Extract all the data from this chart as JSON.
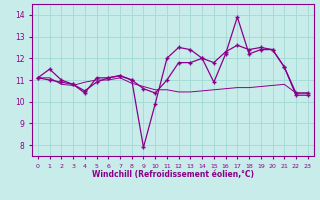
{
  "xlabel": "Windchill (Refroidissement éolien,°C)",
  "bg_color": "#c8ecea",
  "line_color": "#8b008b",
  "grid_color": "#a0d8d4",
  "xlim": [
    -0.5,
    23.5
  ],
  "ylim": [
    7.5,
    14.5
  ],
  "yticks": [
    8,
    9,
    10,
    11,
    12,
    13,
    14
  ],
  "xticks": [
    0,
    1,
    2,
    3,
    4,
    5,
    6,
    7,
    8,
    9,
    10,
    11,
    12,
    13,
    14,
    15,
    16,
    17,
    18,
    19,
    20,
    21,
    22,
    23
  ],
  "line1_x": [
    0,
    1,
    2,
    3,
    4,
    5,
    6,
    7,
    8,
    9,
    10,
    11,
    12,
    13,
    14,
    15,
    16,
    17,
    18,
    19,
    20,
    21,
    22,
    23
  ],
  "line1_y": [
    11.1,
    11.5,
    11.0,
    10.8,
    10.4,
    11.1,
    11.1,
    11.2,
    11.0,
    7.9,
    9.9,
    12.0,
    12.5,
    12.4,
    12.0,
    10.9,
    12.2,
    13.9,
    12.2,
    12.4,
    12.4,
    11.6,
    10.3,
    10.3
  ],
  "line2_x": [
    0,
    1,
    2,
    3,
    4,
    5,
    6,
    7,
    8,
    9,
    10,
    11,
    12,
    13,
    14,
    15,
    16,
    17,
    18,
    19,
    20,
    21,
    22,
    23
  ],
  "line2_y": [
    11.1,
    11.0,
    10.9,
    10.8,
    10.5,
    10.9,
    11.1,
    11.2,
    11.0,
    10.6,
    10.4,
    11.0,
    11.8,
    11.8,
    12.0,
    11.8,
    12.3,
    12.6,
    12.4,
    12.5,
    12.4,
    11.6,
    10.4,
    10.4
  ],
  "line3_x": [
    0,
    1,
    2,
    3,
    4,
    5,
    6,
    7,
    8,
    9,
    10,
    11,
    12,
    13,
    14,
    15,
    16,
    17,
    18,
    19,
    20,
    21,
    22,
    23
  ],
  "line3_y": [
    11.1,
    11.1,
    10.8,
    10.75,
    10.9,
    11.0,
    11.0,
    11.1,
    10.85,
    10.7,
    10.55,
    10.55,
    10.45,
    10.45,
    10.5,
    10.55,
    10.6,
    10.65,
    10.65,
    10.7,
    10.75,
    10.8,
    10.4,
    10.4
  ]
}
